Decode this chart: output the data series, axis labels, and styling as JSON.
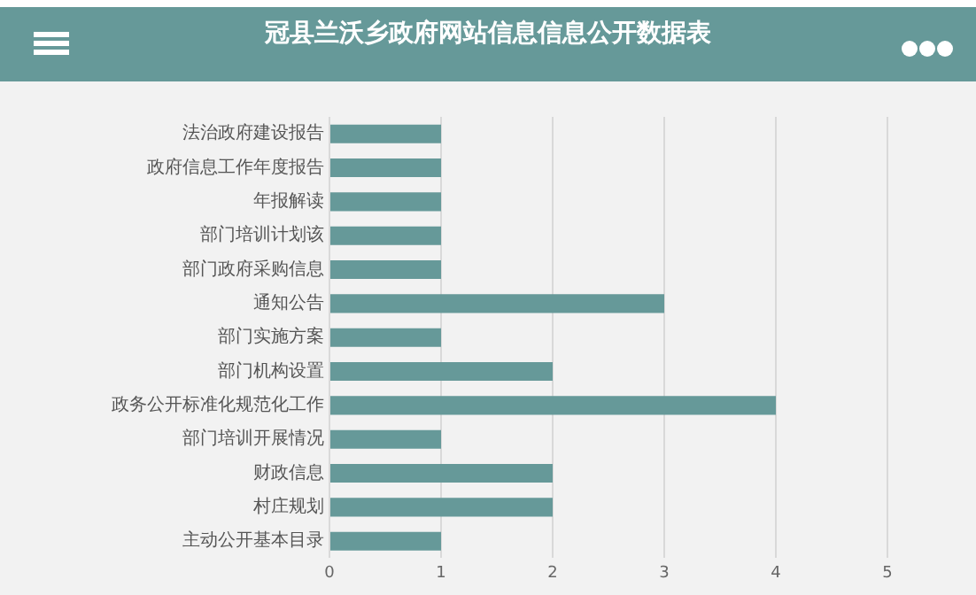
{
  "chart_data": {
    "type": "bar",
    "title": "冠县兰沃乡政府网站信息信息公开数据表",
    "orientation": "horizontal",
    "categories": [
      "法治政府建设报告",
      "政府信息工作年度报告",
      "年报解读",
      "部门培训计划该",
      "部门政府采购信息",
      "通知公告",
      "部门实施方案",
      "部门机构设置",
      "政务公开标准化规范化工作",
      "部门培训开展情况",
      "财政信息",
      "村庄规划",
      "主动公开基本目录"
    ],
    "values": [
      1,
      1,
      1,
      1,
      1,
      3,
      1,
      2,
      4,
      1,
      2,
      2,
      1
    ],
    "color": "#669999",
    "xlim": [
      0,
      5
    ],
    "xticks": [
      0,
      1,
      2,
      3,
      4,
      5
    ],
    "grid": "x",
    "legend": false
  }
}
